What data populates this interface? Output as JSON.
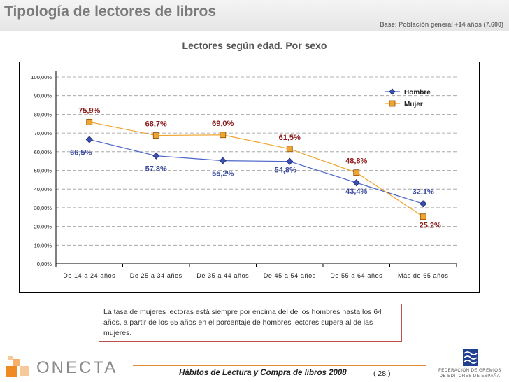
{
  "header": {
    "title": "Tipología de lectores de libros",
    "base": "Base: Población general +14 años (7.600)"
  },
  "note": "La tasa de mujeres lectoras está siempre por encima del de los hombres hasta los 64 años, a partir de los 65 años en el porcentaje de hombres lectores supera al de las mujeres.",
  "footer": {
    "logo_text": "ONECTA",
    "publication": "Hábitos de Lectura y Compra de libros 2008",
    "page": "( 28 )",
    "org_line1": "FEDERACIÓN DE GREMIOS",
    "org_line2": "DE EDITORES DE ESPAÑA"
  },
  "colors": {
    "hombre": "#3c4fb0",
    "mujer": "#f0a430",
    "hombre_label": "#3b4a9c",
    "mujer_label": "#8b1a1a"
  },
  "chart_data": {
    "type": "line",
    "title": "Lectores según edad. Por sexo",
    "categories": [
      "De 14 a 24 años",
      "De 25 a 34 años",
      "De 35 a 44 años",
      "De 45 a 54 años",
      "De 55 a 64 años",
      "Más de 65 años"
    ],
    "series": [
      {
        "name": "Hombre",
        "values": [
          66.5,
          57.8,
          55.2,
          54.8,
          43.4,
          32.1
        ],
        "labels": [
          "66,5%",
          "57,8%",
          "55,2%",
          "54,8%",
          "43,4%",
          "32,1%"
        ]
      },
      {
        "name": "Mujer",
        "values": [
          75.9,
          68.7,
          69.0,
          61.5,
          48.8,
          25.2
        ],
        "labels": [
          "75,9%",
          "68,7%",
          "69,0%",
          "61,5%",
          "48,8%",
          "25,2%"
        ]
      }
    ],
    "yticks": [
      "0,00%",
      "10,00%",
      "20,00%",
      "30,00%",
      "40,00%",
      "50,00%",
      "60,00%",
      "70,00%",
      "80,00%",
      "90,00%",
      "100,00%"
    ],
    "ylim": [
      0,
      100
    ],
    "grid": true,
    "legend": "top-right"
  }
}
